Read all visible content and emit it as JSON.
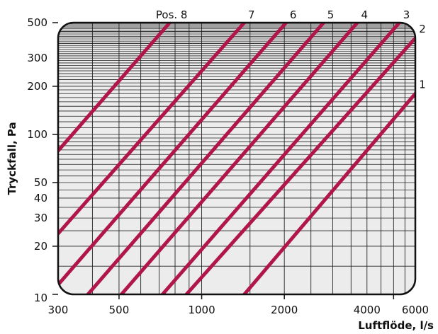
{
  "chart_data": {
    "type": "line",
    "title": "",
    "xlabel": "Luftflöde, l/s",
    "ylabel": "Tryckfall, Pa",
    "x_scale": "log",
    "y_scale": "log",
    "xlim": [
      300,
      6000
    ],
    "ylim": [
      10,
      500
    ],
    "x_ticks": [
      300,
      500,
      1000,
      2000,
      4000,
      6000
    ],
    "y_ticks": [
      10,
      20,
      30,
      40,
      50,
      100,
      200,
      300,
      500
    ],
    "grid": true,
    "line_color": "#b0164a",
    "series": [
      {
        "name": "Pos. 8",
        "x": [
          300,
          765
        ],
        "y": [
          79,
          500
        ]
      },
      {
        "name": "7",
        "x": [
          300,
          1430
        ],
        "y": [
          24,
          500
        ]
      },
      {
        "name": "6",
        "x": [
          300,
          2030
        ],
        "y": [
          11.5,
          500
        ]
      },
      {
        "name": "5",
        "x": [
          385,
          2780
        ],
        "y": [
          10,
          500
        ]
      },
      {
        "name": "4",
        "x": [
          510,
          3690
        ],
        "y": [
          10,
          500
        ]
      },
      {
        "name": "3",
        "x": [
          720,
          5250
        ],
        "y": [
          10,
          500
        ]
      },
      {
        "name": "2",
        "x": [
          880,
          6000
        ],
        "y": [
          10,
          400
        ]
      },
      {
        "name": "1",
        "x": [
          1430,
          6000
        ],
        "y": [
          10,
          180
        ]
      }
    ]
  }
}
